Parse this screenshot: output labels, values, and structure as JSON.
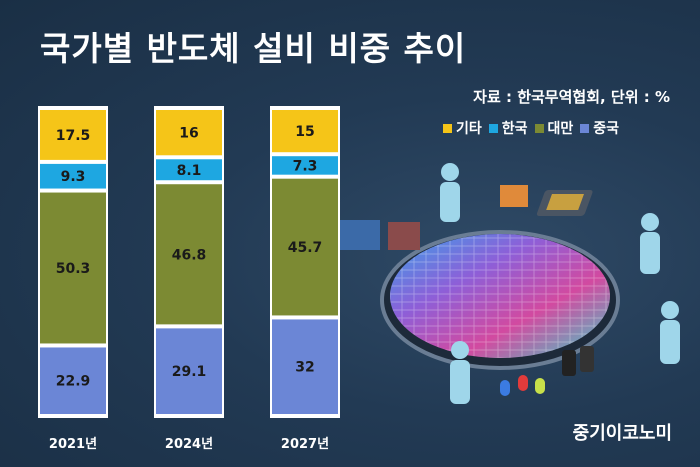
{
  "title": "국가별 반도체 설비 비중 추이",
  "source": "자료 : 한국무역협회, 단위 : %",
  "brand": "중기이코노미",
  "legend": [
    {
      "label": "기타",
      "color": "#f5c518"
    },
    {
      "label": "한국",
      "color": "#1ea7e1"
    },
    {
      "label": "대만",
      "color": "#7c8a33"
    },
    {
      "label": "중국",
      "color": "#6b86d6"
    }
  ],
  "chart_data": {
    "type": "bar",
    "stacked": true,
    "categories": [
      "2021년",
      "2024년",
      "2027년"
    ],
    "series": [
      {
        "name": "중국",
        "color": "#6b86d6",
        "values": [
          22.9,
          29.1,
          32
        ]
      },
      {
        "name": "대만",
        "color": "#7c8a33",
        "values": [
          50.3,
          46.8,
          45.7
        ]
      },
      {
        "name": "한국",
        "color": "#1ea7e1",
        "values": [
          9.3,
          8.1,
          7.3
        ]
      },
      {
        "name": "기타",
        "color": "#f5c518",
        "values": [
          17.5,
          16,
          15
        ]
      }
    ],
    "ylim": [
      0,
      100
    ],
    "grid": false
  }
}
